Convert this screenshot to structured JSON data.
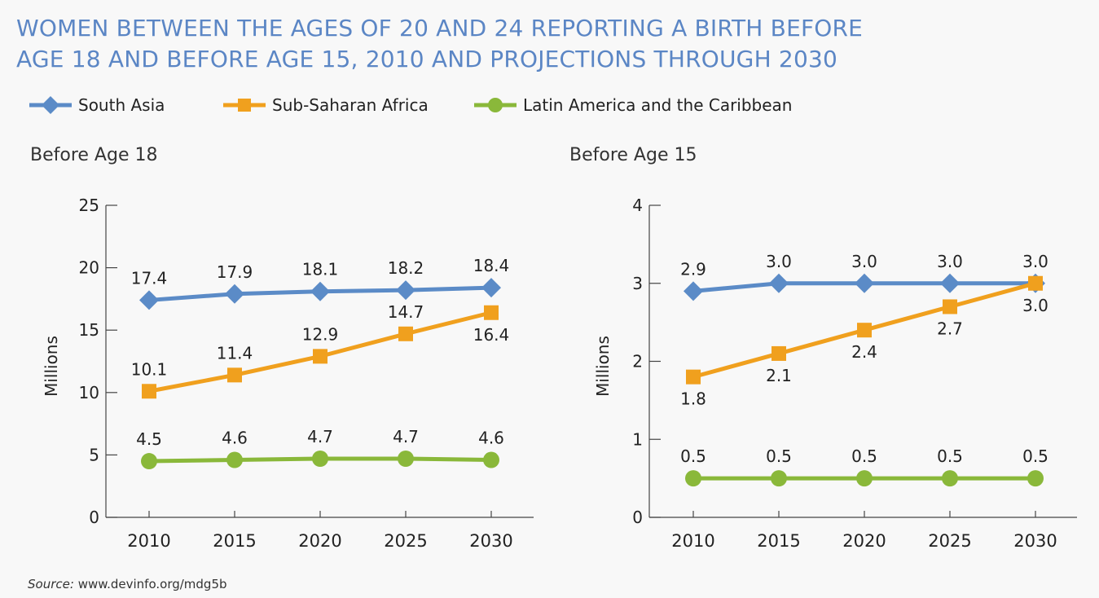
{
  "title_lines": [
    "WOMEN BETWEEN THE AGES OF 20 AND 24 REPORTING A BIRTH BEFORE",
    "AGE 18 AND BEFORE AGE 15, 2010 AND PROJECTIONS THROUGH 2030"
  ],
  "legend": [
    {
      "label": "South Asia",
      "color": "#5b8bc7",
      "marker": "diamond"
    },
    {
      "label": "Sub-Saharan Africa",
      "color": "#f0a01e",
      "marker": "square"
    },
    {
      "label": "Latin America and the Caribbean",
      "color": "#8ab83a",
      "marker": "circle"
    }
  ],
  "source_prefix": "Source:",
  "source_text": "www.devinfo.org/mdg5b",
  "chart_data": [
    {
      "type": "line",
      "title": "Before Age 18",
      "ylabel": "Millions",
      "ylim": [
        0,
        25
      ],
      "yticks": [
        "0",
        "5",
        "10",
        "15",
        "20",
        "25"
      ],
      "categories": [
        "2010",
        "2015",
        "2020",
        "2025",
        "2030"
      ],
      "series": [
        {
          "name": "South Asia",
          "values": [
            17.4,
            17.9,
            18.1,
            18.2,
            18.4
          ],
          "labels": [
            "17.4",
            "17.9",
            "18.1",
            "18.2",
            "18.4"
          ],
          "color": "#5b8bc7",
          "marker": "diamond"
        },
        {
          "name": "Sub-Saharan Africa",
          "values": [
            10.1,
            11.4,
            12.9,
            14.7,
            16.4
          ],
          "labels": [
            "10.1",
            "11.4",
            "12.9",
            "14.7",
            "16.4"
          ],
          "color": "#f0a01e",
          "marker": "square"
        },
        {
          "name": "Latin America and the Caribbean",
          "values": [
            4.5,
            4.6,
            4.7,
            4.7,
            4.6
          ],
          "labels": [
            "4.5",
            "4.6",
            "4.7",
            "4.7",
            "4.6"
          ],
          "color": "#8ab83a",
          "marker": "circle"
        }
      ]
    },
    {
      "type": "line",
      "title": "Before Age 15",
      "ylabel": "Millions",
      "ylim": [
        0,
        4
      ],
      "yticks": [
        "0",
        "1",
        "2",
        "3",
        "4"
      ],
      "categories": [
        "2010",
        "2015",
        "2020",
        "2025",
        "2030"
      ],
      "series": [
        {
          "name": "South Asia",
          "values": [
            2.9,
            3.0,
            3.0,
            3.0,
            3.0
          ],
          "labels": [
            "2.9",
            "3.0",
            "3.0",
            "3.0",
            "3.0"
          ],
          "color": "#5b8bc7",
          "marker": "diamond"
        },
        {
          "name": "Sub-Saharan Africa",
          "values": [
            1.8,
            2.1,
            2.4,
            2.7,
            3.0
          ],
          "labels": [
            "1.8",
            "2.1",
            "2.4",
            "2.7",
            "3.0"
          ],
          "color": "#f0a01e",
          "marker": "square"
        },
        {
          "name": "Latin America and the Caribbean",
          "values": [
            0.5,
            0.5,
            0.5,
            0.5,
            0.5
          ],
          "labels": [
            "0.5",
            "0.5",
            "0.5",
            "0.5",
            "0.5"
          ],
          "color": "#8ab83a",
          "marker": "circle"
        }
      ]
    }
  ]
}
